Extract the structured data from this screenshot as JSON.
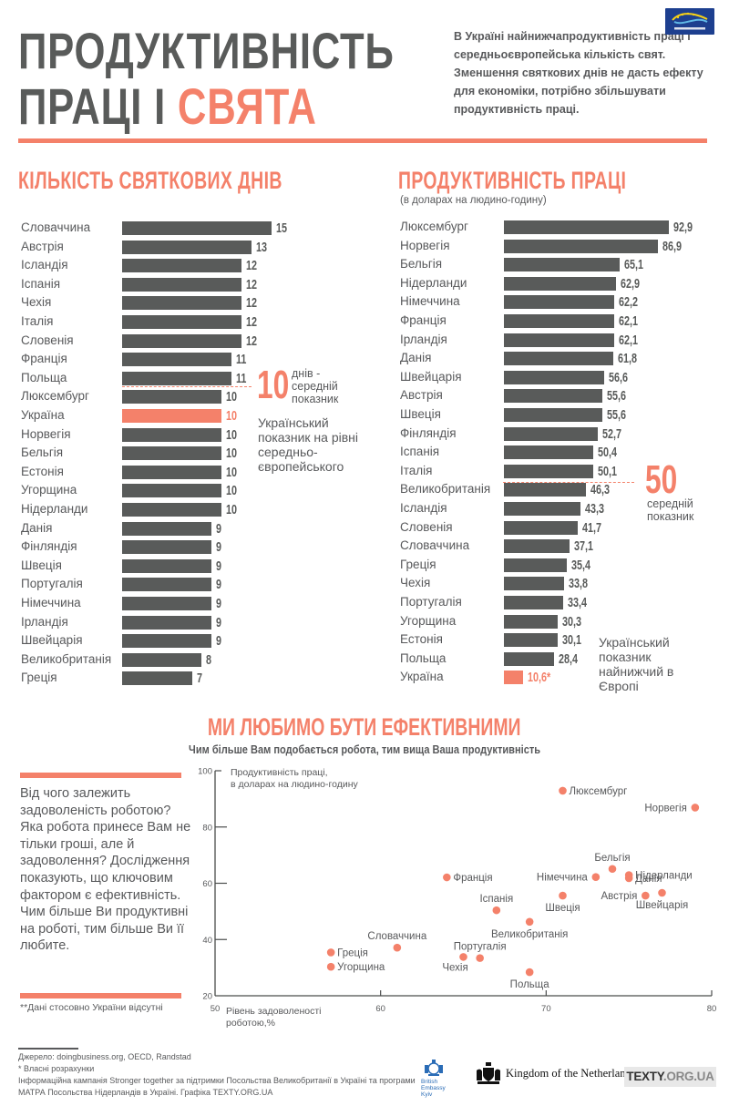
{
  "header": {
    "title_line1": "ПРОДУКТИВНІСТЬ",
    "title_line2_a": "ПРАЦІ І",
    "title_line2_b": "СВЯТА",
    "intro": "В Україні найнижчапродуктивність праці і середньоєвропейська кількість свят. Зменшення святкових днів не дасть ефекту для економіки, потрібно збільшувати продуктивність праці.",
    "logo_eu_label": "СИЛЬНІШІ РАЗОМ"
  },
  "colors": {
    "accent": "#f4816a",
    "bar": "#595b5a",
    "text": "#58595b"
  },
  "holidays": {
    "title": "КІЛЬКІСТЬ СВЯТКОВИХ ДНІВ",
    "average_value": "10",
    "average_label": "днів -\nсередній\nпоказник",
    "ukraine_note": "Український показник на рівні середньо-європейського"
  },
  "productivity": {
    "title": "ПРОДУКТИВНІСТЬ ПРАЦІ",
    "subtitle": "(в доларах на людино-годину)",
    "average_value": "50",
    "average_label": "середній\nпоказник",
    "ukraine_note": "Український показник найнижчий в Європі"
  },
  "scatter": {
    "title": "МИ ЛЮБИМО БУТИ ЕФЕКТИВНИМИ",
    "subtitle": "Чим більше Вам подобається робота, тим вища Ваша продуктивність",
    "side_text": "Від чого залежить задоволеність роботою? Яка робота принесе Вам не тільки гроші, але й задоволення? Дослідження показують, що ключовим фактором є ефективність. Чим більше Ви продуктивні на роботі, тим більше Ви її любите.",
    "side_footnote": "**Дані стосовно України відсутні"
  },
  "footer": {
    "source": "Джерело: doingbusiness.org, OECD, Randstad",
    "own_calc": "* Власні розрахунки",
    "campaign": "Інформаційна кампанія Stronger together за підтримки Посольства Великобританії в Україні та програми МАТРА Посольства Нідерландів в Україні. Графіка TEXTY.ORG.UA",
    "logo_gb": "British Embassy Kyiv",
    "logo_nl": "Kingdom of the Netherlands",
    "logo_texty_a": "TEXTY",
    "logo_texty_b": ".ORG.UA"
  },
  "chart_data": [
    {
      "type": "bar",
      "orientation": "horizontal",
      "title": "КІЛЬКІСТЬ СВЯТКОВИХ ДНІВ",
      "categories": [
        "Словаччина",
        "Австрія",
        "Ісландія",
        "Іспанія",
        "Чехія",
        "Італія",
        "Словенія",
        "Франція",
        "Польща",
        "Люксембург",
        "Україна",
        "Норвегія",
        "Бельгія",
        "Естонія",
        "Угорщина",
        "Нідерланди",
        "Данія",
        "Фінляндія",
        "Швеція",
        "Португалія",
        "Німеччина",
        "Ірландія",
        "Швейцарія",
        "Великобританія",
        "Греція"
      ],
      "values": [
        15,
        13,
        12,
        12,
        12,
        12,
        12,
        11,
        11,
        10,
        10,
        10,
        10,
        10,
        10,
        10,
        9,
        9,
        9,
        9,
        9,
        9,
        9,
        8,
        7
      ],
      "value_labels": [
        "15",
        "13",
        "12",
        "12",
        "12",
        "12",
        "12",
        "11",
        "11",
        "10",
        "10",
        "10",
        "10",
        "10",
        "10",
        "10",
        "9",
        "9",
        "9",
        "9",
        "9",
        "9",
        "9",
        "8",
        "7"
      ],
      "highlight": "Україна",
      "reference_line": {
        "value": 10,
        "label": "10 днів - середній показник"
      },
      "xlim": [
        0,
        15
      ]
    },
    {
      "type": "bar",
      "orientation": "horizontal",
      "title": "ПРОДУКТИВНІСТЬ ПРАЦІ",
      "subtitle": "(в доларах на людино-годину)",
      "categories": [
        "Люксембург",
        "Норвегія",
        "Бельгія",
        "Нідерланди",
        "Німеччина",
        "Франція",
        "Ірландія",
        "Данія",
        "Швейцарія",
        "Австрія",
        "Швеція",
        "Фінляндія",
        "Іспанія",
        "Італія",
        "Великобританія",
        "Ісландія",
        "Словенія",
        "Словаччина",
        "Греція",
        "Чехія",
        "Португалія",
        "Угорщина",
        "Естонія",
        "Польща",
        "Україна"
      ],
      "values": [
        92.9,
        86.9,
        65.1,
        62.9,
        62.2,
        62.1,
        62.1,
        61.8,
        56.6,
        55.6,
        55.6,
        52.7,
        50.4,
        50.1,
        46.3,
        43.3,
        41.7,
        37.1,
        35.4,
        33.8,
        33.4,
        30.3,
        30.1,
        28.4,
        10.6
      ],
      "value_labels": [
        "92,9",
        "86,9",
        "65,1",
        "62,9",
        "62,2",
        "62,1",
        "62,1",
        "61,8",
        "56,6",
        "55,6",
        "55,6",
        "52,7",
        "50,4",
        "50,1",
        "46,3",
        "43,3",
        "41,7",
        "37,1",
        "35,4",
        "33,8",
        "33,4",
        "30,3",
        "30,1",
        "28,4",
        "10,6*"
      ],
      "highlight": "Україна",
      "reference_line": {
        "value": 50,
        "label": "50 середній показник"
      },
      "xlim": [
        0,
        92.9
      ]
    },
    {
      "type": "scatter",
      "title": "МИ ЛЮБИМО БУТИ ЕФЕКТИВНИМИ",
      "xlabel": "Рівень задоволеності роботою,%",
      "ylabel": "Продуктивність праці, в доларах на людино-годину",
      "xlim": [
        50,
        80
      ],
      "ylim": [
        20,
        100
      ],
      "xticks": [
        50,
        60,
        70,
        80
      ],
      "yticks": [
        20,
        40,
        60,
        80,
        100
      ],
      "points": [
        {
          "label": "Люксембург",
          "x": 71,
          "y": 92.9,
          "anchor": "right"
        },
        {
          "label": "Норвегія",
          "x": 79,
          "y": 86.9,
          "anchor": "left"
        },
        {
          "label": "Бельгія",
          "x": 74,
          "y": 65.1,
          "anchor": "above"
        },
        {
          "label": "Нідерланди",
          "x": 75,
          "y": 62.9,
          "anchor": "right"
        },
        {
          "label": "Данія",
          "x": 75,
          "y": 61.8,
          "anchor": "right"
        },
        {
          "label": "Німеччина",
          "x": 73,
          "y": 62.2,
          "anchor": "left"
        },
        {
          "label": "Франція",
          "x": 64,
          "y": 62.1,
          "anchor": "right"
        },
        {
          "label": "Швейцарія",
          "x": 77,
          "y": 56.6,
          "anchor": "below"
        },
        {
          "label": "Австрія",
          "x": 76,
          "y": 55.6,
          "anchor": "left"
        },
        {
          "label": "Швеція",
          "x": 71,
          "y": 55.6,
          "anchor": "below"
        },
        {
          "label": "Іспанія",
          "x": 67,
          "y": 50.4,
          "anchor": "above"
        },
        {
          "label": "Великобританія",
          "x": 69,
          "y": 46.3,
          "anchor": "below"
        },
        {
          "label": "Словаччина",
          "x": 61,
          "y": 37.1,
          "anchor": "above"
        },
        {
          "label": "Греція",
          "x": 57,
          "y": 35.4,
          "anchor": "right"
        },
        {
          "label": "Угорщина",
          "x": 57,
          "y": 30.3,
          "anchor": "right"
        },
        {
          "label": "Чехія",
          "x": 65,
          "y": 33.8,
          "anchor": "below-left"
        },
        {
          "label": "Португалія",
          "x": 66,
          "y": 33.4,
          "anchor": "above"
        },
        {
          "label": "Польща",
          "x": 69,
          "y": 28.4,
          "anchor": "below"
        }
      ]
    }
  ]
}
